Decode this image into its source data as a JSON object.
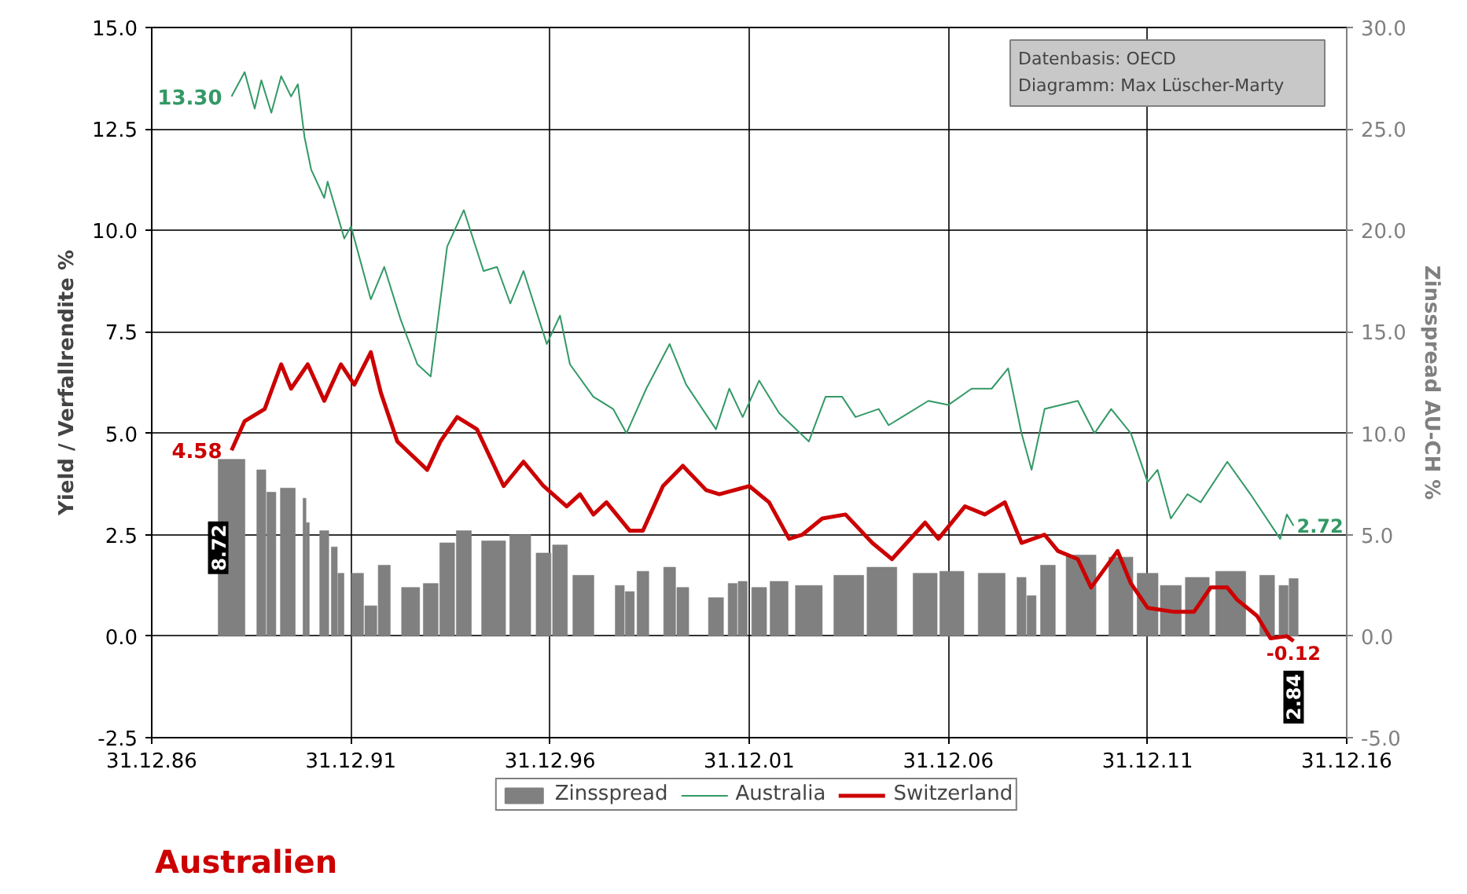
{
  "chart_data": {
    "type": "line",
    "title": "Australien",
    "ylabel": "Yield / Verfallrendite %",
    "y2label": "Zinsspread AU-CH %",
    "annotations": [
      "Datenbasis: OECD",
      "Diagramm: Max Lüscher-Marty"
    ],
    "xlim": [
      "1986-12-31",
      "2016-12-31"
    ],
    "xticks": [
      {
        "value": "1986-12-31",
        "label": "31.12.86"
      },
      {
        "value": "1991-12-31",
        "label": "31.12.91"
      },
      {
        "value": "1996-12-31",
        "label": "31.12.96"
      },
      {
        "value": "2001-12-31",
        "label": "31.12.01"
      },
      {
        "value": "2006-12-31",
        "label": "31.12.06"
      },
      {
        "value": "2011-12-31",
        "label": "31.12.11"
      },
      {
        "value": "2016-12-31",
        "label": "31.12.16"
      }
    ],
    "ylim": [
      -2.5,
      15
    ],
    "yticks": [
      {
        "value": -2.5,
        "label": "-2.5"
      },
      {
        "value": 0,
        "label": "0.0"
      },
      {
        "value": 2.5,
        "label": "2.5"
      },
      {
        "value": 5,
        "label": "5.0"
      },
      {
        "value": 7.5,
        "label": "7.5"
      },
      {
        "value": 10,
        "label": "10.0"
      },
      {
        "value": 12.5,
        "label": "12.5"
      },
      {
        "value": 15,
        "label": "15.0"
      }
    ],
    "y2lim": [
      -5,
      30
    ],
    "y2ticks": [
      {
        "value": -5,
        "label": "-5.0"
      },
      {
        "value": 0,
        "label": "0.0"
      },
      {
        "value": 5,
        "label": "5.0"
      },
      {
        "value": 10,
        "label": "10.0"
      },
      {
        "value": 15,
        "label": "15.0"
      },
      {
        "value": 20,
        "label": "20.0"
      },
      {
        "value": 25,
        "label": "25.0"
      },
      {
        "value": 30,
        "label": "30.0"
      }
    ],
    "grid": true,
    "legend": "bottom",
    "series": [
      {
        "name": "Zinsspread",
        "type": "bar",
        "axis": "y2",
        "color": "#808080",
        "x": [
          "1989-01",
          "1989-10",
          "1990-01",
          "1990-06",
          "1990-11",
          "1990-12",
          "1991-05",
          "1991-08",
          "1991-10",
          "1992-03",
          "1992-07",
          "1992-11",
          "1993-07",
          "1994-01",
          "1994-06",
          "1994-11",
          "1995-08",
          "1996-04",
          "1996-11",
          "1997-04",
          "1997-11",
          "1998-10",
          "1999-01",
          "1999-05",
          "2000-01",
          "2000-05",
          "2001-03",
          "2001-08",
          "2001-11",
          "2002-04",
          "2002-10",
          "2003-07",
          "2004-07",
          "2005-05",
          "2006-06",
          "2007-02",
          "2008-02",
          "2008-11",
          "2009-02",
          "2009-07",
          "2010-05",
          "2011-05",
          "2012-01",
          "2012-08",
          "2013-04",
          "2014-02",
          "2015-01",
          "2015-06",
          "2015-09"
        ],
        "values": [
          8.72,
          8.2,
          7.1,
          7.3,
          6.8,
          5.6,
          5.2,
          4.4,
          3.1,
          3.1,
          1.5,
          3.5,
          2.4,
          2.6,
          4.6,
          5.2,
          4.7,
          5.0,
          4.1,
          4.5,
          3.0,
          2.5,
          2.2,
          3.2,
          3.4,
          2.4,
          1.9,
          2.6,
          2.7,
          2.4,
          2.7,
          2.5,
          3.0,
          3.4,
          3.1,
          3.2,
          3.1,
          2.9,
          2.0,
          3.5,
          4.0,
          3.9,
          3.1,
          2.5,
          2.9,
          3.2,
          3.0,
          2.5,
          2.84
        ],
        "value_labels": [
          "8.72",
          null,
          null,
          null,
          null,
          null,
          null,
          null,
          null,
          null,
          null,
          null,
          null,
          null,
          null,
          null,
          null,
          null,
          null,
          null,
          null,
          null,
          null,
          null,
          null,
          null,
          null,
          null,
          null,
          null,
          null,
          null,
          null,
          null,
          null,
          null,
          null,
          null,
          null,
          null,
          null,
          null,
          null,
          null,
          null,
          null,
          null,
          null,
          "2.84"
        ]
      },
      {
        "name": "Australia",
        "color": "#339966",
        "x": [
          "1989-01",
          "1989-05",
          "1989-08",
          "1989-10",
          "1990-01",
          "1990-04",
          "1990-07",
          "1990-09",
          "1990-11",
          "1991-01",
          "1991-05",
          "1991-06",
          "1991-11",
          "1992-01",
          "1992-07",
          "1992-11",
          "1993-04",
          "1993-09",
          "1994-01",
          "1994-06",
          "1994-11",
          "1995-05",
          "1995-09",
          "1996-01",
          "1996-05",
          "1996-12",
          "1997-04",
          "1997-07",
          "1998-02",
          "1998-08",
          "1998-12",
          "1999-06",
          "2000-01",
          "2000-06",
          "2001-03",
          "2001-07",
          "2001-11",
          "2002-04",
          "2002-10",
          "2003-07",
          "2003-12",
          "2004-05",
          "2004-09",
          "2005-04",
          "2005-07",
          "2005-11",
          "2006-07",
          "2007-01",
          "2007-08",
          "2008-02",
          "2008-07",
          "2008-11",
          "2009-02",
          "2009-06",
          "2010-04",
          "2010-09",
          "2011-02",
          "2011-08",
          "2012-01",
          "2012-04",
          "2012-08",
          "2013-01",
          "2013-05",
          "2014-01",
          "2014-08",
          "2015-05",
          "2015-07",
          "2015-09"
        ],
        "values": [
          13.3,
          13.9,
          13.0,
          13.7,
          12.9,
          13.8,
          13.3,
          13.6,
          12.3,
          11.5,
          10.8,
          11.2,
          9.8,
          10.1,
          8.3,
          9.1,
          7.8,
          6.7,
          6.4,
          9.6,
          10.5,
          9.0,
          9.1,
          8.2,
          9.0,
          7.2,
          7.9,
          6.7,
          5.9,
          5.6,
          5.0,
          6.1,
          7.2,
          6.2,
          5.1,
          6.1,
          5.4,
          6.3,
          5.5,
          4.8,
          5.9,
          5.9,
          5.4,
          5.6,
          5.2,
          5.4,
          5.8,
          5.7,
          6.1,
          6.1,
          6.6,
          5.0,
          4.1,
          5.6,
          5.8,
          5.0,
          5.6,
          5.0,
          3.8,
          4.1,
          2.9,
          3.5,
          3.3,
          4.3,
          3.5,
          2.4,
          3.0,
          2.72
        ],
        "value_labels": [
          "13.30",
          null,
          null,
          null,
          null,
          null,
          null,
          null,
          null,
          null,
          null,
          null,
          null,
          null,
          null,
          null,
          null,
          null,
          null,
          null,
          null,
          null,
          null,
          null,
          null,
          null,
          null,
          null,
          null,
          null,
          null,
          null,
          null,
          null,
          null,
          null,
          null,
          null,
          null,
          null,
          null,
          null,
          null,
          null,
          null,
          null,
          null,
          null,
          null,
          null,
          null,
          null,
          null,
          null,
          null,
          null,
          null,
          null,
          null,
          null,
          null,
          null,
          null,
          null,
          null,
          null,
          null,
          "2.72"
        ]
      },
      {
        "name": "Switzerland",
        "color": "#cc0000",
        "x": [
          "1989-01",
          "1989-05",
          "1989-11",
          "1990-04",
          "1990-07",
          "1990-12",
          "1991-05",
          "1991-10",
          "1992-02",
          "1992-07",
          "1992-10",
          "1993-03",
          "1993-12",
          "1994-04",
          "1994-09",
          "1995-03",
          "1995-11",
          "1996-05",
          "1996-11",
          "1997-06",
          "1997-10",
          "1998-02",
          "1998-06",
          "1999-01",
          "1999-05",
          "1999-11",
          "2000-05",
          "2000-12",
          "2001-04",
          "2002-01",
          "2002-07",
          "2003-01",
          "2003-05",
          "2003-11",
          "2004-06",
          "2005-02",
          "2005-08",
          "2006-06",
          "2006-10",
          "2007-06",
          "2007-12",
          "2008-06",
          "2008-11",
          "2009-06",
          "2009-10",
          "2010-04",
          "2010-08",
          "2011-04",
          "2011-08",
          "2012-01",
          "2012-09",
          "2013-03",
          "2013-08",
          "2014-01",
          "2014-04",
          "2014-10",
          "2015-02",
          "2015-07",
          "2015-09"
        ],
        "values": [
          4.58,
          5.3,
          5.6,
          6.7,
          6.1,
          6.7,
          5.8,
          6.7,
          6.2,
          7.0,
          6.0,
          4.8,
          4.1,
          4.8,
          5.4,
          5.1,
          3.7,
          4.3,
          3.7,
          3.2,
          3.5,
          3.0,
          3.3,
          2.6,
          2.6,
          3.7,
          4.2,
          3.6,
          3.5,
          3.7,
          3.3,
          2.4,
          2.5,
          2.9,
          3.0,
          2.3,
          1.9,
          2.8,
          2.4,
          3.2,
          3.0,
          3.3,
          2.3,
          2.5,
          2.1,
          1.9,
          1.2,
          2.1,
          1.3,
          0.7,
          0.6,
          0.6,
          1.2,
          1.2,
          0.9,
          0.5,
          -0.05,
          0.0,
          -0.12
        ],
        "value_labels": [
          "4.58",
          null,
          null,
          null,
          null,
          null,
          null,
          null,
          null,
          null,
          null,
          null,
          null,
          null,
          null,
          null,
          null,
          null,
          null,
          null,
          null,
          null,
          null,
          null,
          null,
          null,
          null,
          null,
          null,
          null,
          null,
          null,
          null,
          null,
          null,
          null,
          null,
          null,
          null,
          null,
          null,
          null,
          null,
          null,
          null,
          null,
          null,
          null,
          null,
          null,
          null,
          null,
          null,
          null,
          null,
          null,
          null,
          null,
          "-0.12"
        ]
      }
    ]
  }
}
